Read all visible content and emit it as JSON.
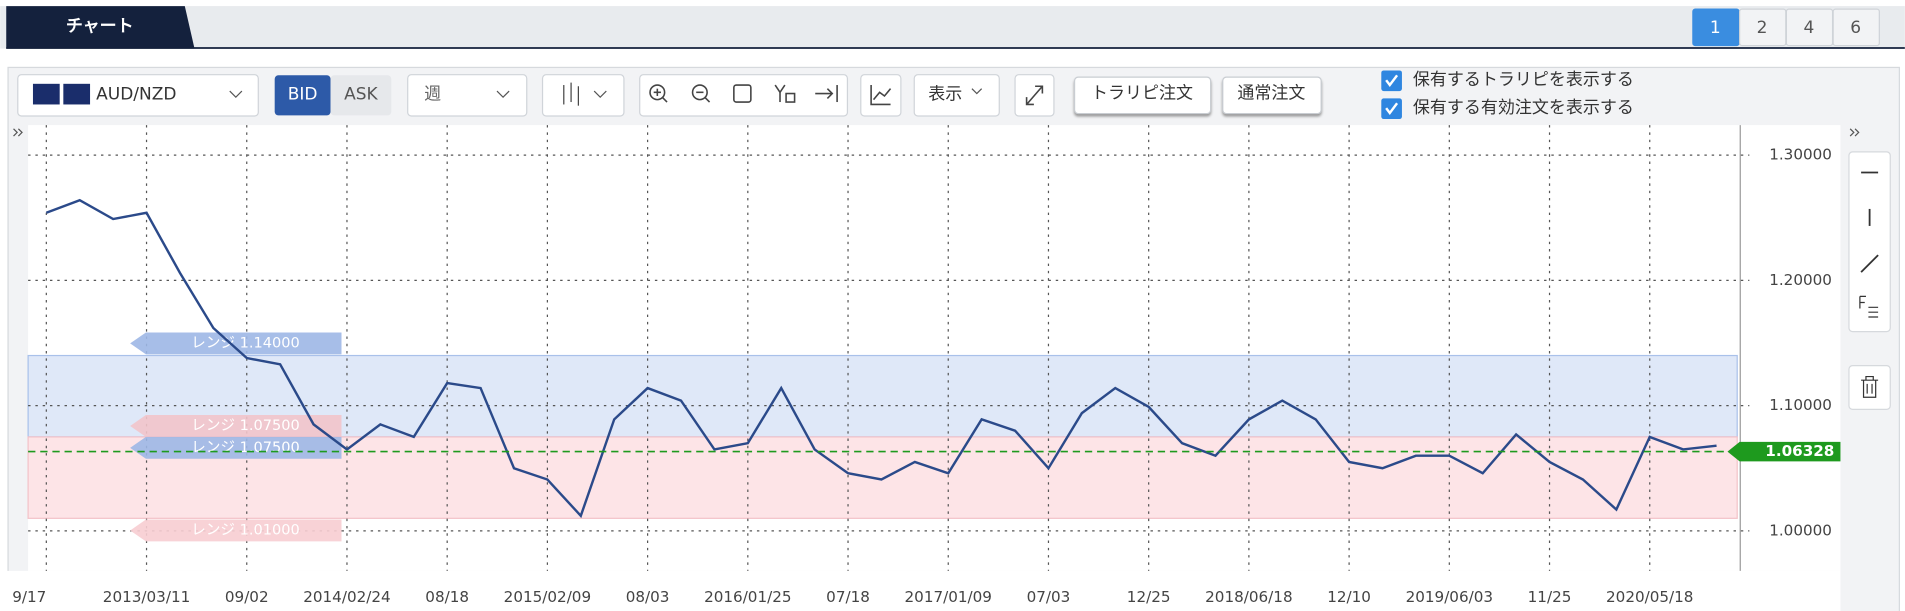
{
  "header": {
    "tab": "チャート",
    "pages": [
      "1",
      "2",
      "4",
      "6"
    ]
  },
  "toolbar": {
    "symbol": "AUD/NZD",
    "bid": "BID",
    "ask": "ASK",
    "period": "週",
    "view": "表示",
    "buttons": [
      "トラリピ注文",
      "通常注文"
    ],
    "checkboxes": [
      "保有するトラリピを表示する",
      "保有する有効注文を表示する"
    ]
  },
  "chart_data": {
    "type": "line",
    "color": "#2b4a8a",
    "grid": true,
    "categories": [
      "9/17",
      null,
      null,
      "2013/03/11",
      null,
      null,
      "09/02",
      null,
      null,
      "2014/02/24",
      null,
      null,
      "08/18",
      null,
      null,
      "2015/02/09",
      null,
      null,
      "08/03",
      null,
      null,
      "2016/01/25",
      null,
      null,
      "07/18",
      null,
      null,
      "2017/01/09",
      null,
      null,
      "07/03",
      null,
      null,
      "12/25",
      null,
      null,
      "2018/06/18",
      null,
      null,
      "12/10",
      null,
      null,
      "2019/06/03",
      null,
      null,
      "11/25",
      null,
      null,
      "2020/05/18",
      null,
      null
    ],
    "values": [
      1.254,
      1.264,
      1.249,
      1.254,
      1.206,
      1.162,
      1.138,
      1.133,
      1.085,
      1.065,
      1.085,
      1.075,
      1.118,
      1.114,
      1.05,
      1.041,
      1.012,
      1.089,
      1.114,
      1.104,
      1.065,
      1.07,
      1.114,
      1.065,
      1.046,
      1.041,
      1.055,
      1.046,
      1.089,
      1.08,
      1.05,
      1.094,
      1.114,
      1.099,
      1.07,
      1.06,
      1.089,
      1.104,
      1.089,
      1.055,
      1.05,
      1.06,
      1.06,
      1.046,
      1.077,
      1.055,
      1.041,
      1.017,
      1.075,
      1.065,
      1.068
    ],
    "ylim": [
      0.968,
      1.324
    ],
    "yticks": [
      {
        "value": 1.0,
        "label": "1.00000"
      },
      {
        "value": 1.1,
        "label": "1.10000"
      },
      {
        "value": 1.2,
        "label": "1.20000"
      },
      {
        "value": 1.3,
        "label": "1.30000"
      }
    ],
    "current_price": {
      "value": 1.06328,
      "label": "1.06328",
      "color": "#1e9a1e"
    },
    "ranges": [
      {
        "value": 1.14,
        "label": "レンジ 1.14000",
        "color": "#9db7e6"
      },
      {
        "value": 1.075,
        "label": "レンジ 1.07500",
        "color": "#f2c4ca"
      },
      {
        "value": 1.075,
        "label": "レンジ 1.07500",
        "color": "#9db7e6"
      },
      {
        "value": 1.01,
        "label": "レンジ 1.01000",
        "color": "#f7cdd2"
      }
    ],
    "band_colors": [
      "#dfe8f8",
      "#fde4e7"
    ]
  }
}
